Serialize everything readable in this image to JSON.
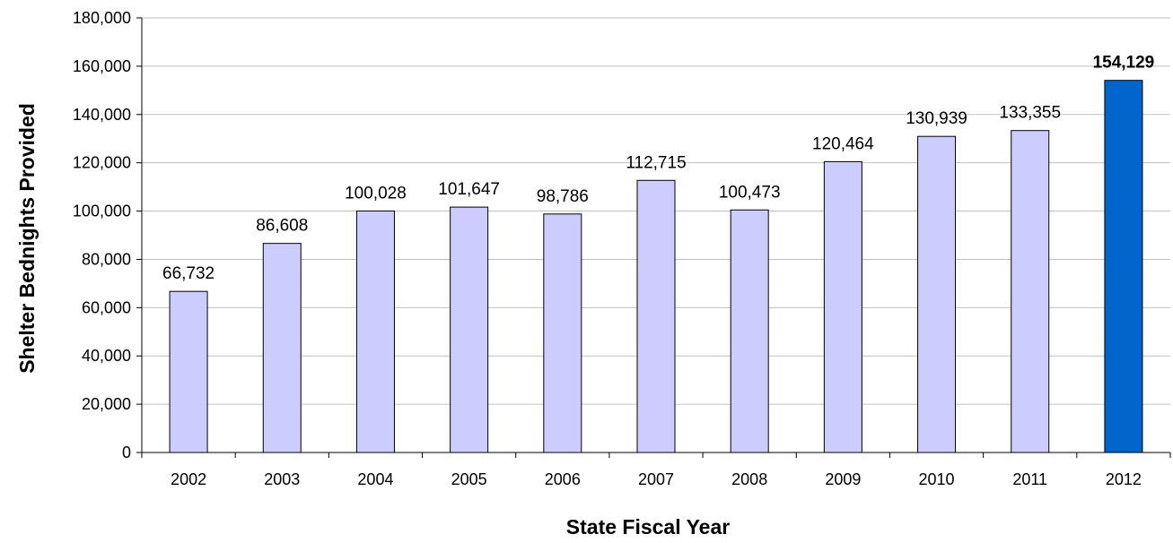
{
  "chart_data": {
    "type": "bar",
    "title": "",
    "xlabel": "State Fiscal Year",
    "ylabel": "Shelter Bednights Provided",
    "categories": [
      "2002",
      "2003",
      "2004",
      "2005",
      "2006",
      "2007",
      "2008",
      "2009",
      "2010",
      "2011",
      "2012"
    ],
    "values": [
      66732,
      86608,
      100028,
      101647,
      98786,
      112715,
      100473,
      120464,
      130939,
      133355,
      154129
    ],
    "data_labels": [
      "66,732",
      "86,608",
      "100,028",
      "101,647",
      "98,786",
      "112,715",
      "100,473",
      "120,464",
      "130,939",
      "133,355",
      "154,129"
    ],
    "highlight_index": 10,
    "ylim": [
      0,
      180000
    ],
    "yticks": [
      0,
      20000,
      40000,
      60000,
      80000,
      100000,
      120000,
      140000,
      160000,
      180000
    ],
    "ytick_labels": [
      "0",
      "20,000",
      "40,000",
      "60,000",
      "80,000",
      "100,000",
      "120,000",
      "140,000",
      "160,000",
      "180,000"
    ],
    "grid": true,
    "legend": "none",
    "colors": {
      "bar": "#ccccff",
      "highlight_bar": "#0066cc",
      "bar_outline": "#000000",
      "grid": "#c0c0c0",
      "axis": "#000000"
    }
  }
}
